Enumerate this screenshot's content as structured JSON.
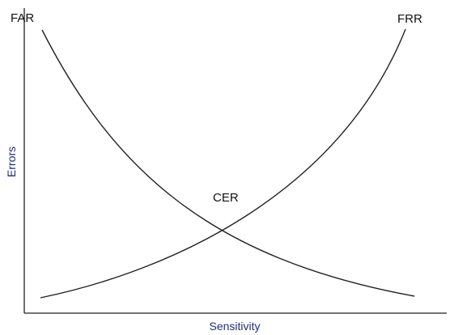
{
  "diagram": {
    "x_axis_label": "Sensitivity",
    "y_axis_label": "Errors",
    "curves": [
      {
        "label": "FAR"
      },
      {
        "label": "FRR"
      }
    ],
    "crossover_label": "CER",
    "colors": {
      "axis_label": "#1f2f7a",
      "axis_line": "#222222",
      "curve": "#222222",
      "text": "#111111"
    }
  }
}
